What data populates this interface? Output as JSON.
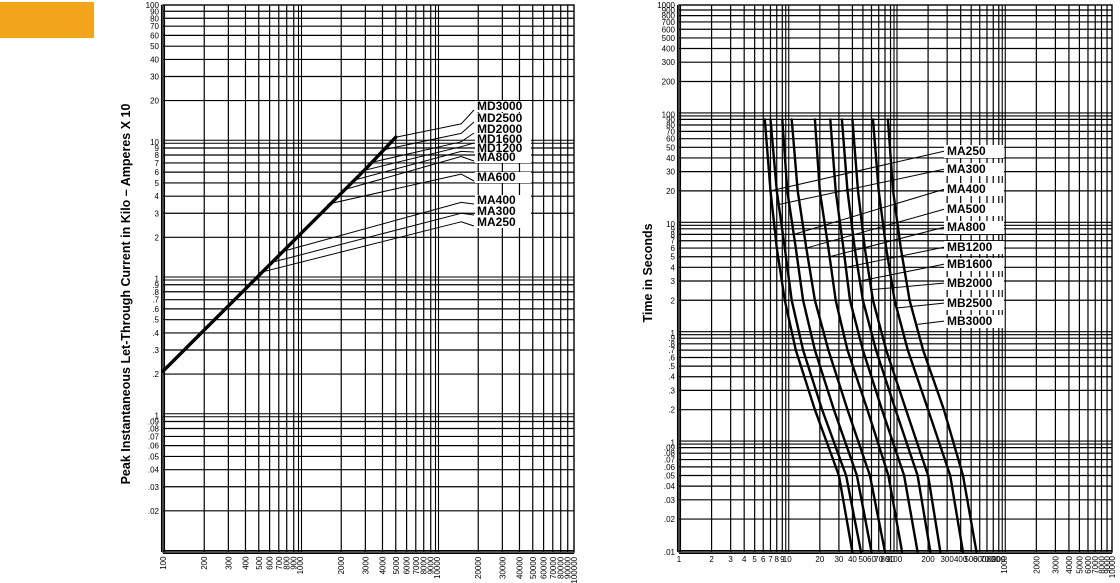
{
  "accent_color": "#f2a41c",
  "chart_data": [
    {
      "type": "line",
      "title": "",
      "ylabel": "Peak Instantaneous Let-Through Current in Kilo – Amperes X 10",
      "xlabel": "",
      "x_scale": "log",
      "y_scale": "log",
      "xlim": [
        100,
        100000
      ],
      "ylim": [
        0.01,
        100
      ],
      "grid": true,
      "x_tick_labels": [
        "100",
        "200",
        "300",
        "400",
        "500",
        "600",
        "700",
        "800",
        "900",
        "1000",
        "2000",
        "3000",
        "4000",
        "5000",
        "6000",
        "7000",
        "8000",
        "9000",
        "10000",
        "20000",
        "30000",
        "40000",
        "50000",
        "60000",
        "70000",
        "80000",
        "90000",
        "100000"
      ],
      "y_tick_labels": [
        ".02",
        ".03",
        ".04",
        ".05",
        ".06",
        ".07",
        ".08",
        ".09",
        ".1",
        ".2",
        ".3",
        ".4",
        ".5",
        ".6",
        ".7",
        ".8",
        ".9",
        "1",
        "2",
        "3",
        "4",
        "5",
        "6",
        "7",
        "8",
        "9",
        "10",
        "20",
        "30",
        "40",
        "50",
        "60",
        "70",
        "80",
        "90",
        "100"
      ],
      "curve_labels": [
        "MD3000",
        "MD2500",
        "MD2000",
        "MD1600",
        "MD1200",
        "MA800",
        "MA600",
        "MA400",
        "MA300",
        "MA250"
      ],
      "series": [
        {
          "name": "envelope",
          "points": [
            [
              100,
              0.21
            ],
            [
              200,
              0.42
            ],
            [
              300,
              0.63
            ],
            [
              500,
              1.05
            ],
            [
              1000,
              2.1
            ],
            [
              2000,
              4.2
            ],
            [
              3000,
              6.3
            ],
            [
              5000,
              10.8
            ]
          ]
        },
        {
          "name": "MD3000",
          "points": [
            [
              5000,
              10.8
            ],
            [
              15000,
              13.5
            ]
          ]
        },
        {
          "name": "MD2500",
          "points": [
            [
              4000,
              8.7
            ],
            [
              15000,
              11.5
            ]
          ]
        },
        {
          "name": "MD2000",
          "points": [
            [
              3200,
              7.0
            ],
            [
              15000,
              10.0
            ]
          ]
        },
        {
          "name": "MD1600",
          "points": [
            [
              2800,
              6.1
            ],
            [
              15000,
              9.2
            ]
          ]
        },
        {
          "name": "MD1200",
          "points": [
            [
              2400,
              5.2
            ],
            [
              15000,
              8.5
            ]
          ]
        },
        {
          "name": "MA800",
          "points": [
            [
              2000,
              4.4
            ],
            [
              15000,
              7.8
            ]
          ]
        },
        {
          "name": "MA600",
          "points": [
            [
              1600,
              3.5
            ],
            [
              15000,
              5.8
            ]
          ]
        },
        {
          "name": "MA400",
          "points": [
            [
              700,
              1.55
            ],
            [
              15000,
              3.6
            ]
          ]
        },
        {
          "name": "MA300",
          "points": [
            [
              600,
              1.3
            ],
            [
              15000,
              3.0
            ]
          ]
        },
        {
          "name": "MA250",
          "points": [
            [
              500,
              1.1
            ],
            [
              15000,
              2.6
            ]
          ]
        }
      ]
    },
    {
      "type": "line",
      "title": "",
      "ylabel": "Time in Seconds",
      "xlabel": "",
      "x_scale": "log",
      "y_scale": "log",
      "xlim": [
        1,
        10000
      ],
      "ylim": [
        0.01,
        1000
      ],
      "grid": true,
      "x_tick_labels": [
        "1",
        "2",
        "3",
        "4",
        "5",
        "6",
        "7",
        "8",
        "9",
        "10",
        "20",
        "30",
        "40",
        "50",
        "60",
        "70",
        "80",
        "90",
        "100",
        "200",
        "300",
        "400",
        "500",
        "600",
        "700",
        "800",
        "900",
        "1000",
        "2000",
        "3000",
        "4000",
        "5000",
        "6000",
        "7000",
        "8000",
        "9000",
        "10000"
      ],
      "y_tick_labels": [
        ".01",
        ".02",
        ".03",
        ".04",
        ".05",
        ".06",
        ".07",
        ".08",
        ".09",
        ".1",
        ".2",
        ".3",
        ".4",
        ".5",
        ".6",
        ".7",
        ".8",
        ".9",
        "1",
        "2",
        "3",
        "4",
        "5",
        "6",
        "7",
        "8",
        "9",
        "10",
        "20",
        "30",
        "40",
        "50",
        "60",
        "70",
        "80",
        "90",
        "100",
        "200",
        "300",
        "400",
        "500",
        "600",
        "700",
        "800",
        "900",
        "1000"
      ],
      "curve_labels": [
        "MA250",
        "MA300",
        "MA400",
        "MA500",
        "MA800",
        "MB1200",
        "MB1600",
        "MB2000",
        "MB2500",
        "MB3000"
      ],
      "series": [
        {
          "name": "MA250",
          "points": [
            [
              6.2,
              90
            ],
            [
              7,
              20
            ],
            [
              8,
              6
            ],
            [
              9.5,
              2
            ],
            [
              12,
              0.7
            ],
            [
              18,
              0.2
            ],
            [
              30,
              0.05
            ],
            [
              40,
              0.01
            ]
          ]
        },
        {
          "name": "MA300",
          "points": [
            [
              7,
              90
            ],
            [
              8,
              20
            ],
            [
              9.5,
              6
            ],
            [
              11,
              2
            ],
            [
              14,
              0.7
            ],
            [
              21,
              0.2
            ],
            [
              35,
              0.05
            ],
            [
              48,
              0.01
            ]
          ]
        },
        {
          "name": "MA400",
          "points": [
            [
              9,
              90
            ],
            [
              10,
              20
            ],
            [
              12,
              6
            ],
            [
              14,
              2
            ],
            [
              18,
              0.7
            ],
            [
              27,
              0.2
            ],
            [
              44,
              0.05
            ],
            [
              60,
              0.01
            ]
          ]
        },
        {
          "name": "MA500",
          "points": [
            [
              11,
              90
            ],
            [
              12.5,
              20
            ],
            [
              15,
              6
            ],
            [
              18,
              2
            ],
            [
              24,
              0.7
            ],
            [
              36,
              0.2
            ],
            [
              58,
              0.05
            ],
            [
              80,
              0.01
            ]
          ]
        },
        {
          "name": "MA800",
          "points": [
            [
              18,
              90
            ],
            [
              20,
              20
            ],
            [
              24,
              6
            ],
            [
              28,
              2
            ],
            [
              36,
              0.7
            ],
            [
              55,
              0.2
            ],
            [
              86,
              0.05
            ],
            [
              115,
              0.01
            ]
          ]
        },
        {
          "name": "MB1200",
          "points": [
            [
              25,
              90
            ],
            [
              28,
              20
            ],
            [
              33,
              6
            ],
            [
              38,
              2
            ],
            [
              50,
              0.7
            ],
            [
              75,
              0.2
            ],
            [
              120,
              0.05
            ],
            [
              160,
              0.01
            ]
          ]
        },
        {
          "name": "MB1600",
          "points": [
            [
              32,
              90
            ],
            [
              36,
              20
            ],
            [
              42,
              6
            ],
            [
              50,
              2
            ],
            [
              66,
              0.7
            ],
            [
              100,
              0.2
            ],
            [
              160,
              0.05
            ],
            [
              210,
              0.01
            ]
          ]
        },
        {
          "name": "MB2000",
          "points": [
            [
              40,
              90
            ],
            [
              45,
              20
            ],
            [
              52,
              6
            ],
            [
              62,
              2
            ],
            [
              82,
              0.7
            ],
            [
              125,
              0.2
            ],
            [
              200,
              0.05
            ],
            [
              260,
              0.01
            ]
          ]
        },
        {
          "name": "MB2500",
          "points": [
            [
              62,
              90
            ],
            [
              70,
              20
            ],
            [
              82,
              6
            ],
            [
              98,
              2
            ],
            [
              130,
              0.7
            ],
            [
              200,
              0.2
            ],
            [
              320,
              0.05
            ],
            [
              420,
              0.01
            ]
          ]
        },
        {
          "name": "MB3000",
          "points": [
            [
              85,
              90
            ],
            [
              95,
              20
            ],
            [
              112,
              6
            ],
            [
              135,
              2
            ],
            [
              180,
              0.7
            ],
            [
              280,
              0.2
            ],
            [
              420,
              0.05
            ],
            [
              560,
              0.01
            ]
          ]
        }
      ]
    }
  ]
}
